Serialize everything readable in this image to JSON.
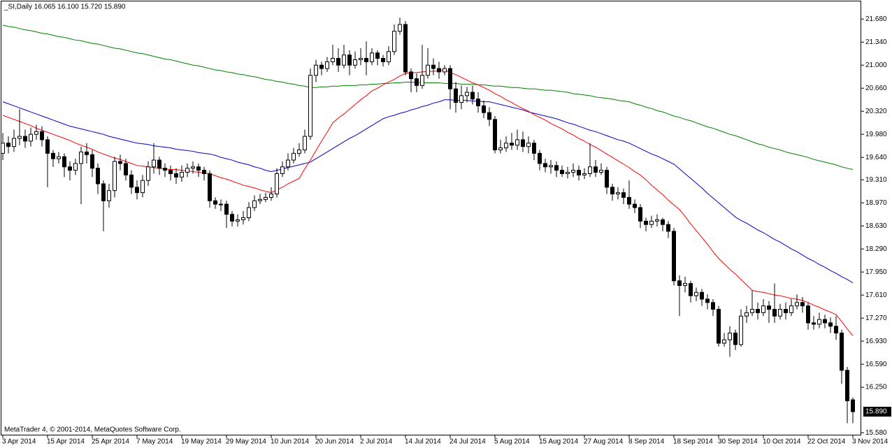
{
  "chart_data": {
    "type": "candlestick",
    "title": "_SI,Daily  16.065 16.100 15.720 15.890",
    "footer": "MetaTrader 4, © 2001-2014, MetaQuotes Software Corp.",
    "up_color": "#ffffff",
    "down_color": "#000000",
    "last_price": {
      "value": 15.89,
      "label": "15.890"
    },
    "ylim": [
      15.54,
      21.94
    ],
    "yticks": [
      {
        "value": 21.68,
        "label": "21.680"
      },
      {
        "value": 21.34,
        "label": "21.340"
      },
      {
        "value": 21.0,
        "label": "21.000"
      },
      {
        "value": 20.66,
        "label": "20.660"
      },
      {
        "value": 20.32,
        "label": "20.320"
      },
      {
        "value": 19.98,
        "label": "19.980"
      },
      {
        "value": 19.64,
        "label": "19.640"
      },
      {
        "value": 19.31,
        "label": "19.310"
      },
      {
        "value": 18.97,
        "label": "18.970"
      },
      {
        "value": 18.63,
        "label": "18.630"
      },
      {
        "value": 18.29,
        "label": "18.290"
      },
      {
        "value": 17.95,
        "label": "17.950"
      },
      {
        "value": 17.61,
        "label": "17.610"
      },
      {
        "value": 17.27,
        "label": "17.270"
      },
      {
        "value": 16.93,
        "label": "16.930"
      },
      {
        "value": 16.59,
        "label": "16.590"
      },
      {
        "value": 16.25,
        "label": "16.250"
      },
      {
        "value": 15.58,
        "label": "15.580"
      }
    ],
    "categories": [
      "3 Apr 2014",
      null,
      null,
      null,
      null,
      null,
      null,
      null,
      "15 Apr 2014",
      null,
      null,
      null,
      null,
      null,
      null,
      null,
      "25 Apr 2014",
      null,
      null,
      null,
      null,
      null,
      null,
      null,
      "7 May 2014",
      null,
      null,
      null,
      null,
      null,
      null,
      null,
      "19 May 2014",
      null,
      null,
      null,
      null,
      null,
      null,
      null,
      "29 May 2014",
      null,
      null,
      null,
      null,
      null,
      null,
      null,
      "10 Jun 2014",
      null,
      null,
      null,
      null,
      null,
      null,
      null,
      "20 Jun 2014",
      null,
      null,
      null,
      null,
      null,
      null,
      null,
      "2 Jul 2014",
      null,
      null,
      null,
      null,
      null,
      null,
      null,
      "14 Jul 2014",
      null,
      null,
      null,
      null,
      null,
      null,
      null,
      "24 Jul 2014",
      null,
      null,
      null,
      null,
      null,
      null,
      null,
      "5 Aug 2014",
      null,
      null,
      null,
      null,
      null,
      null,
      null,
      "15 Aug 2014",
      null,
      null,
      null,
      null,
      null,
      null,
      null,
      "27 Aug 2014",
      null,
      null,
      null,
      null,
      null,
      null,
      null,
      "8 Sep 2014",
      null,
      null,
      null,
      null,
      null,
      null,
      null,
      "18 Sep 2014",
      null,
      null,
      null,
      null,
      null,
      null,
      null,
      "30 Sep 2014",
      null,
      null,
      null,
      null,
      null,
      null,
      null,
      "10 Oct 2014",
      null,
      null,
      null,
      null,
      null,
      null,
      null,
      "22 Oct 2014",
      null,
      null,
      null,
      null,
      null,
      null,
      null,
      "3 Nov 2014"
    ],
    "open": [
      19.7,
      19.85,
      19.8,
      19.92,
      19.95,
      19.88,
      19.98,
      20.02,
      19.9,
      19.7,
      19.62,
      19.65,
      19.5,
      19.45,
      19.55,
      19.72,
      19.68,
      19.48,
      19.25,
      19.0,
      19.15,
      19.58,
      19.55,
      19.38,
      19.2,
      19.12,
      19.3,
      19.5,
      19.6,
      19.48,
      19.45,
      19.4,
      19.35,
      19.42,
      19.48,
      19.5,
      19.45,
      19.4,
      19.0,
      18.95,
      18.95,
      18.8,
      18.7,
      18.72,
      18.75,
      18.9,
      19.0,
      19.02,
      19.05,
      19.1,
      19.4,
      19.5,
      19.6,
      19.7,
      19.75,
      19.95,
      20.85,
      21.0,
      20.95,
      21.05,
      21.1,
      21.0,
      21.15,
      21.0,
      21.08,
      21.1,
      21.05,
      21.18,
      21.1,
      21.05,
      21.2,
      21.5,
      21.6,
      20.9,
      20.8,
      20.7,
      20.85,
      21.0,
      20.95,
      20.9,
      20.95,
      20.65,
      20.45,
      20.55,
      20.6,
      20.5,
      20.4,
      20.3,
      20.2,
      19.75,
      19.78,
      19.85,
      19.82,
      19.9,
      19.8,
      19.85,
      19.7,
      19.55,
      19.5,
      19.52,
      19.45,
      19.4,
      19.42,
      19.45,
      19.38,
      19.4,
      19.5,
      19.42,
      19.45,
      19.2,
      19.1,
      19.12,
      19.05,
      18.95,
      18.9,
      18.7,
      18.65,
      18.7,
      18.72,
      18.65,
      18.55,
      17.82,
      17.75,
      17.78,
      17.6,
      17.65,
      17.55,
      17.5,
      17.4,
      16.9,
      16.95,
      17.05,
      16.88,
      17.3,
      17.35,
      17.4,
      17.35,
      17.45,
      17.4,
      17.3,
      17.4,
      17.35,
      17.45,
      17.5,
      17.45,
      17.2,
      17.18,
      17.25,
      17.2,
      17.15,
      17.05,
      16.5,
      16.065
    ],
    "high": [
      20.0,
      19.95,
      20.05,
      20.35,
      20.05,
      20.08,
      20.12,
      20.1,
      19.95,
      19.75,
      19.72,
      19.7,
      19.58,
      19.62,
      19.8,
      19.85,
      19.75,
      19.55,
      19.3,
      19.25,
      19.65,
      19.68,
      19.62,
      19.45,
      19.3,
      19.38,
      19.58,
      19.85,
      19.65,
      19.55,
      19.52,
      19.48,
      19.52,
      19.55,
      19.58,
      19.55,
      19.5,
      19.45,
      19.05,
      19.02,
      19.0,
      18.85,
      18.8,
      18.85,
      18.98,
      19.08,
      19.1,
      19.12,
      19.2,
      19.48,
      19.58,
      19.7,
      19.78,
      19.85,
      20.05,
      20.95,
      21.08,
      21.05,
      21.12,
      21.3,
      21.25,
      21.3,
      21.22,
      21.2,
      21.25,
      21.35,
      21.25,
      21.22,
      21.15,
      21.28,
      21.6,
      21.7,
      21.65,
      20.95,
      20.88,
      21.3,
      21.25,
      21.1,
      21.05,
      21.0,
      21.0,
      20.75,
      20.7,
      20.68,
      20.7,
      20.6,
      20.48,
      20.38,
      20.25,
      19.9,
      19.95,
      20.0,
      20.05,
      20.02,
      19.95,
      19.9,
      19.75,
      19.62,
      19.6,
      19.58,
      19.52,
      19.5,
      19.55,
      19.52,
      19.48,
      19.85,
      19.6,
      19.55,
      19.5,
      19.25,
      19.2,
      19.18,
      19.3,
      19.02,
      18.95,
      18.75,
      18.78,
      18.8,
      18.75,
      18.7,
      18.6,
      17.9,
      17.88,
      17.82,
      17.72,
      17.7,
      17.62,
      17.55,
      17.45,
      17.05,
      17.15,
      17.1,
      17.4,
      17.45,
      17.68,
      17.5,
      17.55,
      17.52,
      17.78,
      17.48,
      17.5,
      17.55,
      17.62,
      17.58,
      17.5,
      17.3,
      17.35,
      17.32,
      17.28,
      17.3,
      17.1,
      16.55,
      16.1
    ],
    "low": [
      19.6,
      19.7,
      19.72,
      19.82,
      19.78,
      19.8,
      19.9,
      19.8,
      19.2,
      19.5,
      19.55,
      19.35,
      19.3,
      19.38,
      18.95,
      19.55,
      19.35,
      19.1,
      18.55,
      18.9,
      19.05,
      19.45,
      19.3,
      19.1,
      19.02,
      19.05,
      19.22,
      19.4,
      19.38,
      19.35,
      19.3,
      19.25,
      19.28,
      19.35,
      19.4,
      19.35,
      19.3,
      18.9,
      18.88,
      18.85,
      18.6,
      18.62,
      18.62,
      18.65,
      18.7,
      18.85,
      18.95,
      18.98,
      19.0,
      19.05,
      19.35,
      19.45,
      19.55,
      19.65,
      19.7,
      19.9,
      20.75,
      20.85,
      20.9,
      21.0,
      20.9,
      20.95,
      20.85,
      20.95,
      21.0,
      20.85,
      21.0,
      21.0,
      20.98,
      21.0,
      21.15,
      21.45,
      20.85,
      20.6,
      20.6,
      20.65,
      20.8,
      20.85,
      20.8,
      20.85,
      20.35,
      20.3,
      20.35,
      20.45,
      20.42,
      20.3,
      20.22,
      20.1,
      19.7,
      19.7,
      19.72,
      19.75,
      19.75,
      19.72,
      19.7,
      19.6,
      19.45,
      19.42,
      19.4,
      19.35,
      19.35,
      19.33,
      19.35,
      19.3,
      19.32,
      19.35,
      19.35,
      19.38,
      19.1,
      19.0,
      19.02,
      18.95,
      18.88,
      18.82,
      18.6,
      18.55,
      18.6,
      18.62,
      18.55,
      18.45,
      17.75,
      17.3,
      17.65,
      17.5,
      17.52,
      17.45,
      17.4,
      17.3,
      16.85,
      16.85,
      16.7,
      16.8,
      16.85,
      17.2,
      17.3,
      17.25,
      17.3,
      17.2,
      17.2,
      17.25,
      17.25,
      17.3,
      17.4,
      17.35,
      17.1,
      17.1,
      17.12,
      17.12,
      17.05,
      16.95,
      16.3,
      15.72,
      15.72
    ],
    "close": [
      19.85,
      19.8,
      19.92,
      19.95,
      19.88,
      19.98,
      20.02,
      19.9,
      19.7,
      19.62,
      19.65,
      19.5,
      19.45,
      19.55,
      19.72,
      19.68,
      19.48,
      19.25,
      19.0,
      19.15,
      19.58,
      19.55,
      19.38,
      19.2,
      19.12,
      19.3,
      19.5,
      19.6,
      19.48,
      19.45,
      19.4,
      19.35,
      19.42,
      19.48,
      19.5,
      19.45,
      19.4,
      19.0,
      18.95,
      18.95,
      18.8,
      18.7,
      18.72,
      18.75,
      18.9,
      19.0,
      19.02,
      19.05,
      19.1,
      19.4,
      19.5,
      19.6,
      19.7,
      19.75,
      19.95,
      20.85,
      21.0,
      20.95,
      21.05,
      21.1,
      21.0,
      21.15,
      21.0,
      21.08,
      21.1,
      21.05,
      21.18,
      21.1,
      21.05,
      21.2,
      21.5,
      21.6,
      20.9,
      20.8,
      20.7,
      20.85,
      21.0,
      20.95,
      20.9,
      20.95,
      20.65,
      20.45,
      20.55,
      20.6,
      20.5,
      20.4,
      20.3,
      20.2,
      19.75,
      19.78,
      19.85,
      19.82,
      19.9,
      19.8,
      19.85,
      19.7,
      19.55,
      19.5,
      19.52,
      19.45,
      19.4,
      19.42,
      19.45,
      19.38,
      19.4,
      19.5,
      19.42,
      19.45,
      19.2,
      19.1,
      19.12,
      19.05,
      18.95,
      18.9,
      18.7,
      18.65,
      18.7,
      18.72,
      18.65,
      18.55,
      17.82,
      17.75,
      17.78,
      17.6,
      17.65,
      17.55,
      17.5,
      17.4,
      16.9,
      16.95,
      17.05,
      16.88,
      17.3,
      17.35,
      17.4,
      17.35,
      17.45,
      17.4,
      17.3,
      17.4,
      17.35,
      17.45,
      17.5,
      17.45,
      17.2,
      17.18,
      17.25,
      17.2,
      17.15,
      17.05,
      16.5,
      16.05,
      15.89
    ],
    "lines": [
      {
        "color": "#008000",
        "values": [
          21.59,
          21.57,
          21.56,
          21.54,
          21.52,
          21.51,
          21.49,
          21.47,
          21.46,
          21.44,
          21.42,
          21.41,
          21.39,
          21.37,
          21.36,
          21.34,
          21.32,
          21.31,
          21.29,
          21.27,
          21.25,
          21.24,
          21.22,
          21.2,
          21.18,
          21.17,
          21.15,
          21.13,
          21.11,
          21.09,
          21.08,
          21.06,
          21.04,
          21.02,
          21.0,
          20.99,
          20.97,
          20.95,
          20.93,
          20.92,
          20.9,
          20.89,
          20.87,
          20.86,
          20.84,
          20.83,
          20.81,
          20.79,
          20.78,
          20.76,
          20.75,
          20.73,
          20.72,
          20.7,
          20.69,
          20.67,
          20.67,
          20.68,
          20.68,
          20.69,
          20.69,
          20.7,
          20.7,
          20.7,
          20.71,
          20.71,
          20.72,
          20.72,
          20.73,
          20.73,
          20.74,
          20.74,
          20.75,
          20.75,
          20.75,
          20.74,
          20.74,
          20.74,
          20.74,
          20.73,
          20.73,
          20.73,
          20.72,
          20.72,
          20.72,
          20.71,
          20.71,
          20.7,
          20.69,
          20.69,
          20.68,
          20.67,
          20.67,
          20.66,
          20.65,
          20.65,
          20.64,
          20.63,
          20.63,
          20.62,
          20.61,
          20.6,
          20.58,
          20.57,
          20.56,
          20.55,
          20.53,
          20.52,
          20.51,
          20.5,
          20.48,
          20.47,
          20.46,
          20.43,
          20.41,
          20.38,
          20.36,
          20.33,
          20.31,
          20.28,
          20.25,
          20.23,
          20.2,
          20.18,
          20.15,
          20.12,
          20.09,
          20.07,
          20.04,
          20.01,
          19.98,
          19.96,
          19.93,
          19.9,
          19.87,
          19.84,
          19.82,
          19.79,
          19.77,
          19.75,
          19.72,
          19.7,
          19.68,
          19.66,
          19.64,
          19.61,
          19.59,
          19.57,
          19.55,
          19.53,
          19.5,
          19.48,
          19.46
        ]
      },
      {
        "color": "#0000cc",
        "values": [
          20.46,
          20.43,
          20.4,
          20.37,
          20.34,
          20.31,
          20.28,
          20.25,
          20.22,
          20.19,
          20.16,
          20.13,
          20.1,
          20.08,
          20.06,
          20.04,
          20.02,
          20.0,
          19.98,
          19.95,
          19.93,
          19.91,
          19.89,
          19.87,
          19.85,
          19.84,
          19.83,
          19.81,
          19.8,
          19.79,
          19.78,
          19.76,
          19.75,
          19.74,
          19.73,
          19.71,
          19.7,
          19.69,
          19.67,
          19.64,
          19.62,
          19.6,
          19.57,
          19.55,
          19.53,
          19.5,
          19.48,
          19.45,
          19.43,
          19.45,
          19.47,
          19.49,
          19.51,
          19.53,
          19.55,
          19.57,
          19.62,
          19.67,
          19.72,
          19.77,
          19.82,
          19.87,
          19.92,
          19.96,
          20.01,
          20.06,
          20.11,
          20.16,
          20.21,
          20.24,
          20.26,
          20.29,
          20.31,
          20.34,
          20.36,
          20.39,
          20.41,
          20.44,
          20.46,
          20.49,
          20.49,
          20.48,
          20.48,
          20.48,
          20.47,
          20.47,
          20.46,
          20.46,
          20.44,
          20.42,
          20.4,
          20.38,
          20.36,
          20.34,
          20.31,
          20.29,
          20.27,
          20.25,
          20.23,
          20.21,
          20.18,
          20.15,
          20.13,
          20.1,
          20.07,
          20.04,
          20.02,
          19.99,
          19.96,
          19.93,
          19.9,
          19.88,
          19.85,
          19.81,
          19.77,
          19.73,
          19.69,
          19.66,
          19.62,
          19.58,
          19.54,
          19.47,
          19.4,
          19.33,
          19.26,
          19.19,
          19.11,
          19.04,
          18.97,
          18.9,
          18.83,
          18.76,
          18.71,
          18.67,
          18.62,
          18.57,
          18.53,
          18.48,
          18.43,
          18.39,
          18.34,
          18.29,
          18.25,
          18.2,
          18.15,
          18.11,
          18.06,
          18.02,
          17.97,
          17.93,
          17.88,
          17.84,
          17.79
        ]
      },
      {
        "color": "#ff0000",
        "values": [
          20.26,
          20.23,
          20.2,
          20.17,
          20.14,
          20.11,
          20.07,
          20.04,
          20.01,
          19.98,
          19.95,
          19.92,
          19.89,
          19.85,
          19.82,
          19.79,
          19.76,
          19.72,
          19.69,
          19.66,
          19.63,
          19.61,
          19.58,
          19.55,
          19.52,
          19.51,
          19.5,
          19.49,
          19.48,
          19.47,
          19.46,
          19.46,
          19.45,
          19.44,
          19.43,
          19.42,
          19.41,
          19.4,
          19.37,
          19.34,
          19.32,
          19.29,
          19.26,
          19.23,
          19.21,
          19.19,
          19.16,
          19.14,
          19.12,
          19.16,
          19.2,
          19.25,
          19.29,
          19.33,
          19.47,
          19.6,
          19.74,
          19.88,
          20.01,
          20.15,
          20.22,
          20.28,
          20.35,
          20.42,
          20.49,
          20.55,
          20.62,
          20.66,
          20.71,
          20.75,
          20.79,
          20.84,
          20.88,
          20.89,
          20.89,
          20.9,
          20.91,
          20.91,
          20.92,
          20.93,
          20.89,
          20.86,
          20.82,
          20.78,
          20.74,
          20.71,
          20.67,
          20.63,
          20.58,
          20.54,
          20.49,
          20.45,
          20.4,
          20.36,
          20.32,
          20.27,
          20.23,
          20.19,
          20.14,
          20.1,
          20.06,
          20.01,
          19.97,
          19.92,
          19.88,
          19.83,
          19.79,
          19.74,
          19.69,
          19.64,
          19.59,
          19.54,
          19.49,
          19.43,
          19.38,
          19.31,
          19.23,
          19.16,
          19.09,
          19.01,
          18.94,
          18.87,
          18.77,
          18.66,
          18.56,
          18.46,
          18.36,
          18.25,
          18.15,
          18.07,
          17.99,
          17.92,
          17.84,
          17.76,
          17.68,
          17.66,
          17.65,
          17.63,
          17.61,
          17.6,
          17.58,
          17.56,
          17.55,
          17.53,
          17.5,
          17.46,
          17.43,
          17.39,
          17.36,
          17.32,
          17.22,
          17.11,
          17.01
        ]
      }
    ]
  }
}
